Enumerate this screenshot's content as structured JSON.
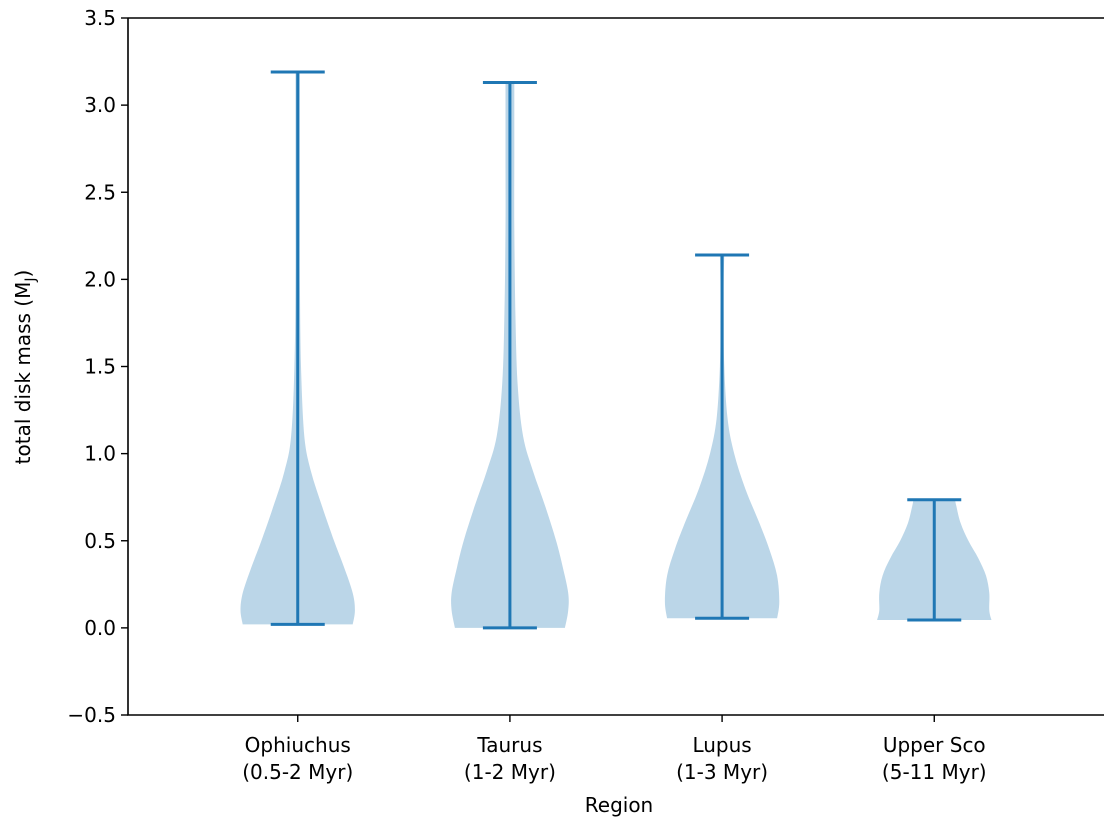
{
  "chart_data": {
    "type": "violin",
    "xlabel": "Region",
    "ylabel": "total disk mass (M",
    "ylabel_sub": "J",
    "ylabel_close": ")",
    "ylim": [
      -0.5,
      3.5
    ],
    "yticks": [
      -0.5,
      0.0,
      0.5,
      1.0,
      1.5,
      2.0,
      2.5,
      3.0,
      3.5
    ],
    "ytick_labels": [
      "−0.5",
      "0.0",
      "0.5",
      "1.0",
      "1.5",
      "2.0",
      "2.5",
      "3.0",
      "3.5"
    ],
    "color": "#1f77b4",
    "categories": [
      {
        "line1": "Ophiuchus",
        "line2": "(0.5-2 Myr)",
        "min": 0.02,
        "max": 3.19,
        "profile": [
          [
            0.02,
            0.5
          ],
          [
            0.1,
            0.52
          ],
          [
            0.2,
            0.5
          ],
          [
            0.35,
            0.42
          ],
          [
            0.5,
            0.33
          ],
          [
            0.7,
            0.22
          ],
          [
            0.9,
            0.12
          ],
          [
            1.1,
            0.06
          ],
          [
            1.5,
            0.03
          ],
          [
            2.0,
            0.02
          ],
          [
            2.5,
            0.02
          ],
          [
            3.0,
            0.02
          ],
          [
            3.19,
            0.02
          ]
        ]
      },
      {
        "line1": "Taurus",
        "line2": "(1-2 Myr)",
        "min": 0.0,
        "max": 3.13,
        "profile": [
          [
            0.0,
            0.5
          ],
          [
            0.1,
            0.53
          ],
          [
            0.2,
            0.53
          ],
          [
            0.35,
            0.48
          ],
          [
            0.5,
            0.42
          ],
          [
            0.7,
            0.32
          ],
          [
            0.9,
            0.21
          ],
          [
            1.1,
            0.12
          ],
          [
            1.4,
            0.07
          ],
          [
            1.8,
            0.05
          ],
          [
            2.3,
            0.04
          ],
          [
            2.7,
            0.04
          ],
          [
            3.0,
            0.04
          ],
          [
            3.13,
            0.04
          ]
        ]
      },
      {
        "line1": "Lupus",
        "line2": "(1-3 Myr)",
        "min": 0.055,
        "max": 2.14,
        "profile": [
          [
            0.055,
            0.5
          ],
          [
            0.15,
            0.52
          ],
          [
            0.3,
            0.5
          ],
          [
            0.45,
            0.43
          ],
          [
            0.6,
            0.34
          ],
          [
            0.8,
            0.21
          ],
          [
            1.0,
            0.11
          ],
          [
            1.2,
            0.05
          ],
          [
            1.5,
            0.02
          ],
          [
            1.8,
            0.015
          ],
          [
            2.0,
            0.015
          ],
          [
            2.14,
            0.02
          ]
        ]
      },
      {
        "line1": "Upper Sco",
        "line2": "(5-11 Myr)",
        "min": 0.045,
        "max": 0.735,
        "profile": [
          [
            0.045,
            0.52
          ],
          [
            0.1,
            0.5
          ],
          [
            0.2,
            0.5
          ],
          [
            0.3,
            0.47
          ],
          [
            0.4,
            0.4
          ],
          [
            0.5,
            0.31
          ],
          [
            0.6,
            0.24
          ],
          [
            0.7,
            0.2
          ],
          [
            0.735,
            0.19
          ]
        ]
      }
    ]
  }
}
